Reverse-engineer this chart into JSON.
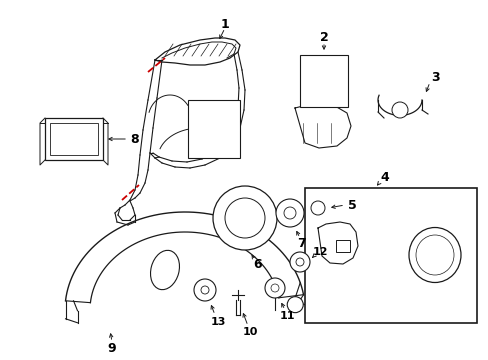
{
  "background_color": "#ffffff",
  "line_color": "#1a1a1a",
  "label_color": "#000000",
  "red_color": "#cc0000",
  "figsize": [
    4.89,
    3.6
  ],
  "dpi": 100
}
